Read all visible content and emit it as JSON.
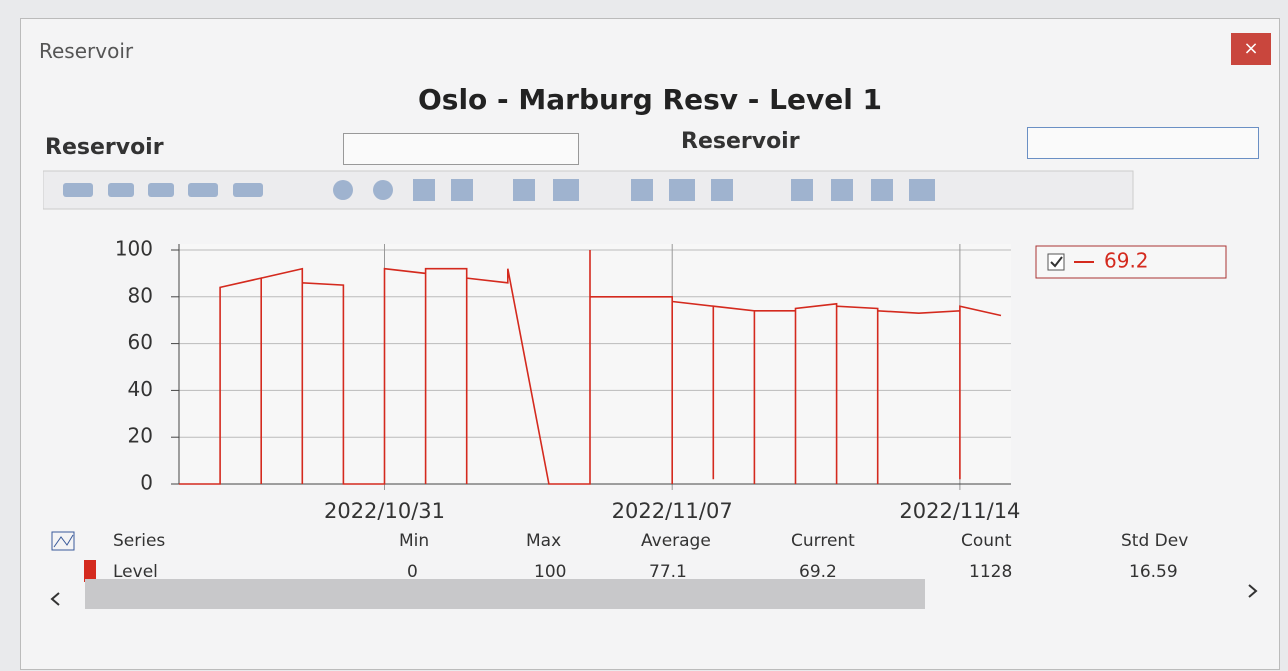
{
  "window": {
    "title": "Reservoir",
    "close": "×"
  },
  "header": {
    "title": "Oslo - Marburg Resv - Level 1"
  },
  "form": {
    "labels": [
      "Reservoir",
      "Reservoir"
    ]
  },
  "chart_data": {
    "type": "line",
    "x": [
      "2022/10/26",
      "2022/10/27",
      "2022/10/27",
      "2022/10/28",
      "2022/10/28",
      "2022/10/28",
      "2022/10/29",
      "2022/10/29",
      "2022/10/29",
      "2022/10/30",
      "2022/10/30",
      "2022/10/31",
      "2022/10/31",
      "2022/10/31",
      "2022/10/31",
      "2022/11/01",
      "2022/11/01",
      "2022/11/01",
      "2022/11/02",
      "2022/11/02",
      "2022/11/02",
      "2022/11/03",
      "2022/11/03",
      "2022/11/04",
      "2022/11/05",
      "2022/11/05",
      "2022/11/05",
      "2022/11/06",
      "2022/11/07",
      "2022/11/07",
      "2022/11/07",
      "2022/11/08",
      "2022/11/08",
      "2022/11/08",
      "2022/11/09",
      "2022/11/09",
      "2022/11/09",
      "2022/11/10",
      "2022/11/10",
      "2022/11/10",
      "2022/11/11",
      "2022/11/11",
      "2022/11/11",
      "2022/11/12",
      "2022/11/12",
      "2022/11/12",
      "2022/11/13",
      "2022/11/14",
      "2022/11/14",
      "2022/11/14",
      "2022/11/14",
      "2022/11/14",
      "2022/11/15"
    ],
    "series": [
      {
        "color": "#d42a1e",
        "values": [
          0,
          0,
          84,
          88,
          0,
          88,
          92,
          0,
          86,
          85,
          0,
          0,
          90,
          0,
          92,
          90,
          0,
          92,
          92,
          0,
          88,
          86,
          92,
          0,
          0,
          100,
          80,
          80,
          80,
          0,
          78,
          76,
          2,
          76,
          74,
          0,
          74,
          74,
          0,
          75,
          77,
          0,
          76,
          75,
          0,
          74,
          73,
          74,
          2,
          75,
          3,
          76,
          72
        ]
      }
    ],
    "xlim": [
      "2022/10/26",
      "2022/11/15"
    ],
    "xticks": [
      "2022/10/31",
      "2022/11/07",
      "2022/11/14"
    ],
    "ylim": [
      0,
      100
    ],
    "yticks": [
      0,
      20,
      40,
      60,
      80,
      100
    ],
    "grid": true,
    "legend": {
      "label": "69.2",
      "corner": "right-top"
    }
  },
  "stats": {
    "header": [
      "Series",
      "Min",
      "Max",
      "Average",
      "Current",
      "Count",
      "Std Dev"
    ],
    "rows": [
      [
        "Level",
        "0",
        "100",
        "77.1",
        "69.2",
        "1128",
        "16.59"
      ]
    ]
  }
}
